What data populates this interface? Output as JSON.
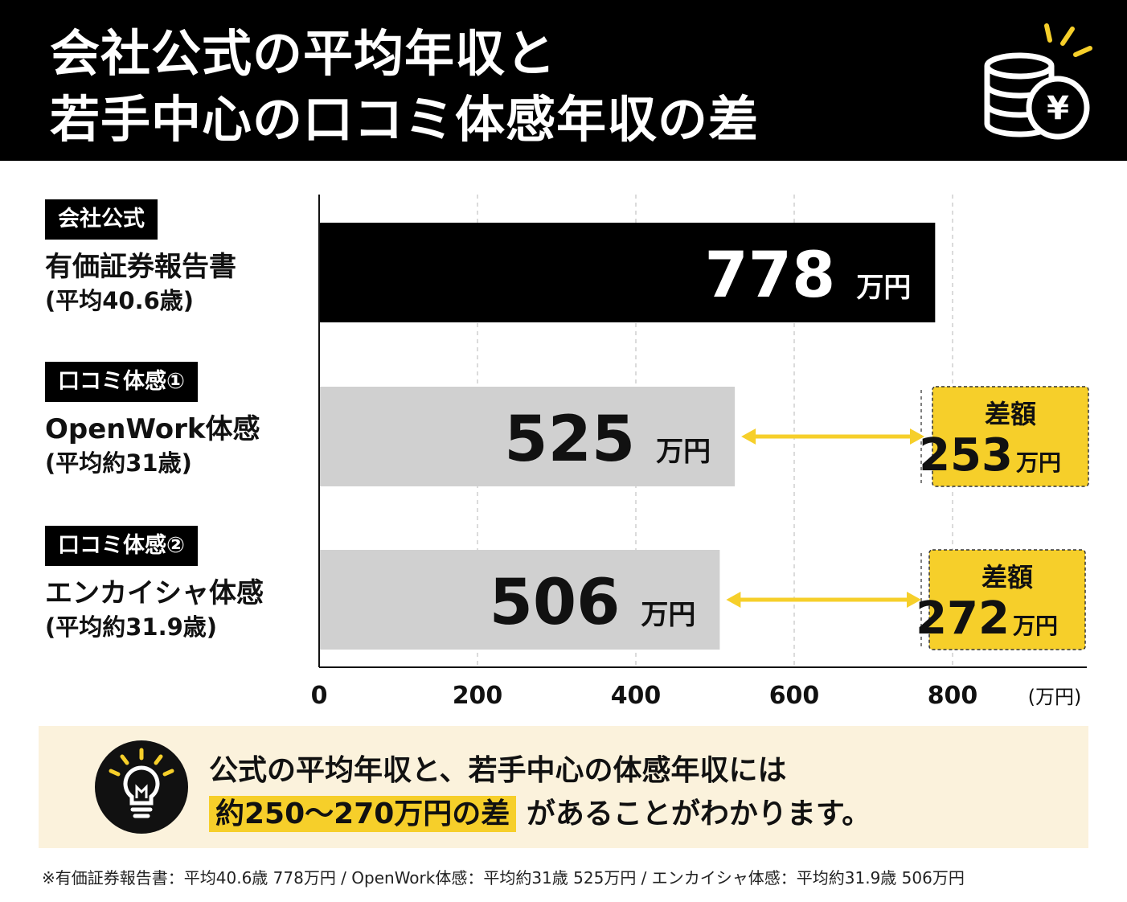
{
  "header": {
    "title_line1": "会社公式の平均年収と",
    "title_line2": "若手中心の口コミ体感年収の差"
  },
  "rows": [
    {
      "tag": "会社公式",
      "label": "有価証券報告書",
      "sub": "(平均40.6歳)"
    },
    {
      "tag": "口コミ体感①",
      "label": "OpenWork体感",
      "sub": "(平均約31歳)"
    },
    {
      "tag": "口コミ体感②",
      "label": "エンカイシャ体感",
      "sub": "(平均約31.9歳)"
    }
  ],
  "chart_data": {
    "type": "bar",
    "orientation": "horizontal",
    "categories": [
      "有価証券報告書",
      "OpenWork体感",
      "エンカイシャ体感"
    ],
    "values": [
      778,
      525,
      506
    ],
    "value_unit": "万円",
    "bar_colors": [
      "#000000",
      "#d0d0d0",
      "#d0d0d0"
    ],
    "xlim": [
      0,
      960
    ],
    "xticks": [
      0,
      200,
      400,
      600,
      800
    ],
    "xlabel": "(万円)",
    "differences": [
      {
        "title": "差額",
        "value": 253,
        "unit": "万円"
      },
      {
        "title": "差額",
        "value": 272,
        "unit": "万円"
      }
    ],
    "accent_color": "#f6cf2a"
  },
  "note": {
    "line1": "公式の平均年収と、若手中心の体感年収には",
    "highlight": "約250〜270万円の差",
    "line2_rest": "があることがわかります。"
  },
  "footnote": "※有価証券報告書：平均40.6歳 778万円 / OpenWork体感：平均約31歳 525万円 / エンカイシャ体感：平均約31.9歳 506万円",
  "icons": {
    "coins": "coin-stack-yen-icon",
    "bulb": "lightbulb-icon"
  }
}
